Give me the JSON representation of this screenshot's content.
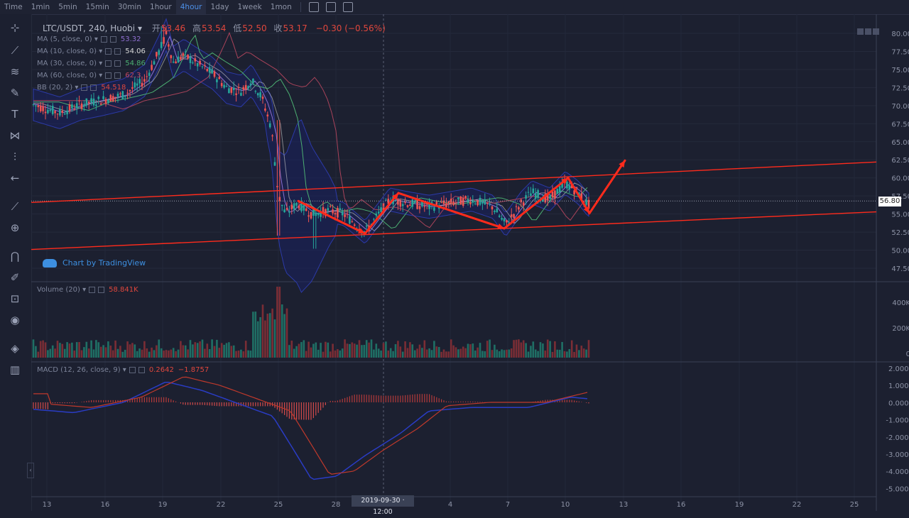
{
  "toolbar": {
    "timeframes": [
      "Time",
      "1min",
      "5min",
      "15min",
      "30min",
      "1hour",
      "4hour",
      "1day",
      "1week",
      "1mon"
    ],
    "active": "4hour",
    "icons": [
      "indicator-icon",
      "settings-icon",
      "screenshot-icon"
    ]
  },
  "left_tools": [
    "crosshair-icon",
    "trendline-icon",
    "fib-icon",
    "brush-icon",
    "text-icon",
    "pattern-icon",
    "projection-icon",
    "back-arrow-icon",
    "ruler-icon",
    "zoom-icon",
    "magnet-icon",
    "draw-lock-icon",
    "lock-icon",
    "eye-icon",
    "layers-icon",
    "trash-icon"
  ],
  "header": {
    "symbol": "LTC/USDT, 240, Huobi",
    "open_label": "开",
    "open": "53.46",
    "high_label": "高",
    "high": "53.54",
    "low_label": "低",
    "low": "52.50",
    "close_label": "收",
    "close": "53.17",
    "change": "−0.30 (−0.56%)"
  },
  "indicators": [
    {
      "label": "MA (5, close, 0)",
      "value": "53.32",
      "color": "#8e6fd0"
    },
    {
      "label": "MA (10, close, 0)",
      "value": "54.06",
      "color": "#d8d8d8"
    },
    {
      "label": "MA (30, close, 0)",
      "value": "54.86",
      "color": "#4caf72"
    },
    {
      "label": "MA (60, close, 0)",
      "value": "62.3",
      "color": "#c0475f"
    },
    {
      "label": "BB (20, 2)",
      "value": "54.518",
      "color": "#e0473d"
    }
  ],
  "watermark": "Chart by TradingView",
  "current_price": "56.80",
  "volume": {
    "label": "Volume (20)",
    "value": "58.841K",
    "ticks": [
      "400K",
      "200K",
      "0"
    ]
  },
  "macd": {
    "label": "MACD (12, 26, close, 9)",
    "v1": "0.2642",
    "v2": "−1.8757",
    "ticks": [
      "2.0000",
      "1.0000",
      "0.0000",
      "-1.0000",
      "-2.0000",
      "-3.0000",
      "-4.0000",
      "-5.0000"
    ]
  },
  "price_ticks": [
    "80.00",
    "77.50",
    "75.00",
    "72.50",
    "70.00",
    "67.50",
    "65.00",
    "62.50",
    "60.00",
    "57.50",
    "55.00",
    "52.50",
    "50.00",
    "47.50"
  ],
  "x_ticks": [
    "13",
    "16",
    "19",
    "22",
    "25",
    "28",
    "4",
    "7",
    "10",
    "13",
    "16",
    "19",
    "22",
    "25"
  ],
  "crosshair_date": "2019-09-30 · 12:00",
  "colors": {
    "up": "#26a69a",
    "down": "#ef5350",
    "annot": "#ff2b1c",
    "bg": "#1c2030"
  },
  "chart_data": {
    "type": "candlestick",
    "title": "LTC/USDT, 240, Huobi",
    "ylim": [
      46,
      81
    ],
    "key_points": [
      {
        "date": "Sep 13",
        "price": 70.0
      },
      {
        "date": "Sep 19",
        "price": 79.5
      },
      {
        "date": "Sep 24",
        "price": 72.0
      },
      {
        "date": "Sep 25",
        "price": 56.0
      },
      {
        "date": "Sep 26",
        "price": 52.5
      },
      {
        "date": "Sep 30",
        "price": 55.5
      },
      {
        "date": "Oct 4",
        "price": 56.5
      },
      {
        "date": "Oct 7",
        "price": 53.0
      },
      {
        "date": "Oct 10",
        "price": 59.5
      },
      {
        "date": "Oct 11",
        "price": 56.8
      }
    ]
  }
}
